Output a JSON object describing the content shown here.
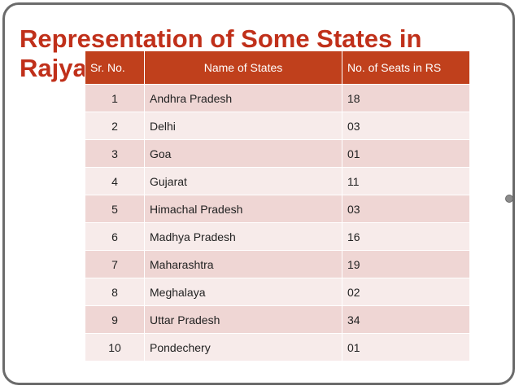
{
  "slide": {
    "title": "Representation of  Some States in Rajya Sabha:",
    "colors": {
      "title": "#c0301a",
      "header_bg": "#c0401c",
      "row_odd": "#efd6d4",
      "row_even": "#f7ebea"
    }
  },
  "table": {
    "headers": [
      "Sr. No.",
      "Name of States",
      "No. of  Seats in RS"
    ],
    "rows": [
      [
        "1",
        "Andhra Pradesh",
        "18"
      ],
      [
        "2",
        "Delhi",
        "03"
      ],
      [
        "3",
        "Goa",
        "01"
      ],
      [
        "4",
        "Gujarat",
        "11"
      ],
      [
        "5",
        "Himachal Pradesh",
        "03"
      ],
      [
        "6",
        "Madhya Pradesh",
        "16"
      ],
      [
        "7",
        "Maharashtra",
        "19"
      ],
      [
        "8",
        "Meghalaya",
        "02"
      ],
      [
        "9",
        "Uttar Pradesh",
        "34"
      ],
      [
        "10",
        "Pondechery",
        "01"
      ]
    ]
  }
}
